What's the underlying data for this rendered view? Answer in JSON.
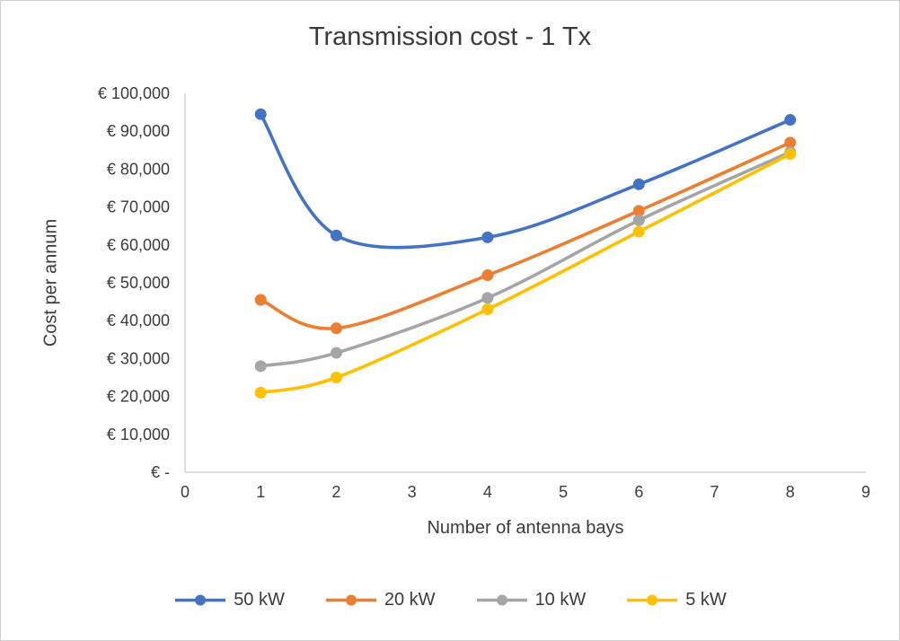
{
  "chart_data": {
    "type": "line",
    "title": "Transmission cost - 1 Tx",
    "xlabel": "Number of antenna bays",
    "ylabel": "Cost per annum",
    "x": [
      1,
      2,
      4,
      6,
      8
    ],
    "series": [
      {
        "name": "50 kW",
        "color": "#4472C4",
        "values": [
          94500,
          62500,
          62000,
          76000,
          93000
        ]
      },
      {
        "name": "20 kW",
        "color": "#ED7D31",
        "values": [
          45500,
          38000,
          52000,
          69000,
          87000
        ]
      },
      {
        "name": "10 kW",
        "color": "#A5A5A5",
        "values": [
          28000,
          31500,
          46000,
          66500,
          84500
        ]
      },
      {
        "name": "5 kW",
        "color": "#FFC000",
        "values": [
          21000,
          25000,
          43000,
          63500,
          84000
        ]
      }
    ],
    "xlim": [
      0,
      9
    ],
    "ylim": [
      0,
      100000
    ],
    "x_ticks": [
      0,
      1,
      2,
      3,
      4,
      5,
      6,
      7,
      8,
      9
    ],
    "x_tick_labels": [
      "0",
      "1",
      "2",
      "3",
      "4",
      "5",
      "6",
      "7",
      "8",
      "9"
    ],
    "y_ticks": [
      0,
      10000,
      20000,
      30000,
      40000,
      50000,
      60000,
      70000,
      80000,
      90000,
      100000
    ],
    "y_tick_labels": [
      "€ -",
      "€ 10,000",
      "€ 20,000",
      "€ 30,000",
      "€ 40,000",
      "€ 50,000",
      "€ 60,000",
      "€ 70,000",
      "€ 80,000",
      "€ 90,000",
      "€ 100,000"
    ],
    "grid": false,
    "line_smoothing": true,
    "legend_position": "bottom",
    "axis_color": "#BFBFBF",
    "text_color": "#3B3B3B"
  }
}
